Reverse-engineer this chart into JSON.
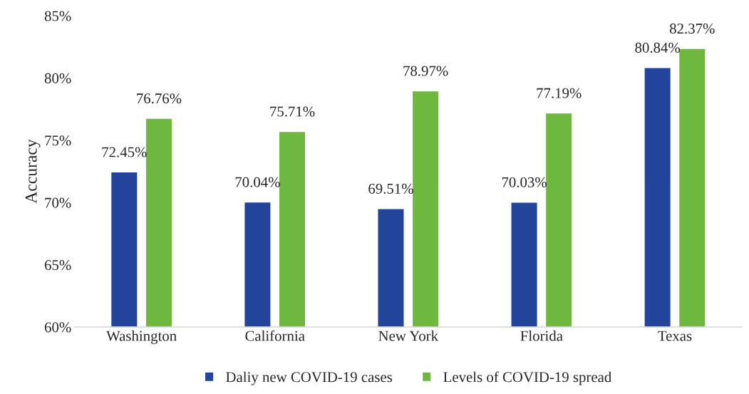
{
  "chart_data": {
    "type": "bar",
    "ylabel": "Accuracy",
    "categories": [
      "Washington",
      "California",
      "New York",
      "Florida",
      "Texas"
    ],
    "series": [
      {
        "name": "Daliy new COVID-19 cases",
        "color": "#22449a",
        "values": [
          72.45,
          70.04,
          69.51,
          70.03,
          80.84
        ],
        "value_labels": [
          "72.45%",
          "70.04%",
          "69.51%",
          "70.03%",
          "80.84%"
        ]
      },
      {
        "name": "Levels of COVID-19 spread",
        "color": "#6fb83f",
        "values": [
          76.76,
          75.71,
          78.97,
          77.19,
          82.37
        ],
        "value_labels": [
          "76.76%",
          "75.71%",
          "78.97%",
          "77.19%",
          "82.37%"
        ]
      }
    ],
    "ylim": [
      60,
      85
    ],
    "yticks": [
      {
        "value": 60,
        "label": "60%"
      },
      {
        "value": 65,
        "label": "65%"
      },
      {
        "value": 70,
        "label": "70%"
      },
      {
        "value": 75,
        "label": "75%"
      },
      {
        "value": 80,
        "label": "80%"
      },
      {
        "value": 85,
        "label": "85%"
      }
    ],
    "grid": false,
    "legend": "bottom"
  }
}
